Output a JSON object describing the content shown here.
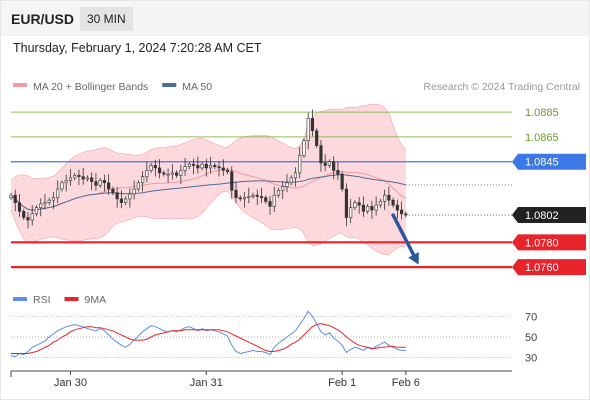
{
  "header": {
    "symbol": "EUR/USD",
    "timeframe": "30 MIN"
  },
  "datetime": "Thursday, February 1, 2024 7:20:28 AM CET",
  "colors": {
    "bollinger_fill": "#fdd8dc",
    "bollinger_line": "#f6a4ab",
    "ma20": "#f19aa3",
    "ma50": "#4a6c9b",
    "resistance": "#8fbf5a",
    "pivot": "#3c78e6",
    "support": "#e8232a",
    "current_bg": "#222222",
    "arrow": "#2b579a",
    "rsi": "#5b8ee6",
    "rsi_ma": "#e8232a"
  },
  "chart_data": [
    {
      "type": "candlestick",
      "legend": [
        {
          "name": "MA 20 + Bollinger Bands",
          "color": "#f19aa3"
        },
        {
          "name": "MA 50",
          "color": "#4a6c9b"
        }
      ],
      "attribution": "Research © 2024 Trading Central",
      "ylim": [
        1.0748,
        1.0898
      ],
      "x_range": [
        0,
        118
      ],
      "x_ticks": [
        {
          "x": 14,
          "label": "Jan 30"
        },
        {
          "x": 46,
          "label": "Jan 31"
        },
        {
          "x": 78,
          "label": "Feb 1"
        },
        {
          "x": 93,
          "label": "Feb 6"
        }
      ],
      "levels": [
        {
          "value": 1.0885,
          "label": "1.0885",
          "kind": "resistance"
        },
        {
          "value": 1.0865,
          "label": "1.0865",
          "kind": "resistance"
        },
        {
          "value": 1.0845,
          "label": "1.0845",
          "kind": "pivot"
        },
        {
          "value": 1.078,
          "label": "1.0780",
          "kind": "support"
        },
        {
          "value": 1.076,
          "label": "1.0760",
          "kind": "support"
        }
      ],
      "current_price": {
        "value": 1.0802,
        "label": "1.0802"
      },
      "forecast_arrow": {
        "from": [
          90,
          1.0802
        ],
        "to": [
          96,
          1.0762
        ]
      },
      "close": [
        1.0818,
        1.0812,
        1.0805,
        1.08,
        1.0798,
        1.0803,
        1.0808,
        1.0811,
        1.0812,
        1.0814,
        1.0816,
        1.0823,
        1.0828,
        1.083,
        1.0832,
        1.0834,
        1.0833,
        1.0831,
        1.0832,
        1.0829,
        1.0826,
        1.083,
        1.0828,
        1.0823,
        1.082,
        1.0815,
        1.0812,
        1.0815,
        1.0819,
        1.0823,
        1.0828,
        1.0833,
        1.0838,
        1.0842,
        1.084,
        1.0836,
        1.0835,
        1.0835,
        1.0836,
        1.0834,
        1.0838,
        1.0841,
        1.0843,
        1.0842,
        1.084,
        1.0843,
        1.084,
        1.0842,
        1.0841,
        1.084,
        1.0838,
        1.0837,
        1.0822,
        1.0816,
        1.0815,
        1.0816,
        1.0817,
        1.0818,
        1.0817,
        1.0816,
        1.0813,
        1.0809,
        1.0818,
        1.0822,
        1.0825,
        1.0828,
        1.0832,
        1.0836,
        1.085,
        1.0862,
        1.088,
        1.087,
        1.0858,
        1.0844,
        1.0842,
        1.0845,
        1.0838,
        1.0835,
        1.0823,
        1.08,
        1.0808,
        1.0812,
        1.081,
        1.0805,
        1.0809,
        1.0806,
        1.081,
        1.0813,
        1.0818,
        1.0814,
        1.081,
        1.0806,
        1.0803,
        1.0802
      ]
    },
    {
      "type": "line",
      "legend": [
        {
          "name": "RSI",
          "color": "#5b8ee6"
        },
        {
          "name": "9MA",
          "color": "#e8232a"
        }
      ],
      "ylim": [
        20,
        80
      ],
      "y_ticks": [
        {
          "value": 70,
          "label": "70"
        },
        {
          "value": 50,
          "label": "50"
        },
        {
          "value": 30,
          "label": "30"
        }
      ],
      "rsi": [
        32,
        31,
        34,
        33,
        36,
        40,
        42,
        44,
        46,
        50,
        53,
        56,
        58,
        60,
        61,
        62,
        61,
        60,
        58,
        57,
        56,
        58,
        56,
        52,
        48,
        45,
        42,
        40,
        43,
        47,
        51,
        55,
        58,
        61,
        60,
        58,
        56,
        55,
        56,
        55,
        57,
        59,
        60,
        58,
        56,
        58,
        56,
        57,
        56,
        55,
        53,
        51,
        42,
        36,
        34,
        35,
        36,
        37,
        36,
        36,
        35,
        33,
        40,
        44,
        47,
        50,
        53,
        56,
        62,
        68,
        75,
        70,
        63,
        55,
        52,
        54,
        49,
        46,
        42,
        35,
        38,
        40,
        39,
        37,
        40,
        38,
        41,
        43,
        45,
        42,
        40,
        38,
        37,
        37
      ],
      "rsi_ma": [
        34,
        34,
        34,
        34,
        34,
        35,
        36,
        38,
        40,
        42,
        45,
        47,
        50,
        52,
        55,
        57,
        58,
        59,
        60,
        60,
        59,
        59,
        58,
        57,
        56,
        54,
        52,
        50,
        48,
        47,
        47,
        47,
        48,
        50,
        52,
        53,
        54,
        55,
        56,
        56,
        56,
        57,
        57,
        57,
        57,
        57,
        57,
        57,
        57,
        57,
        56,
        55,
        53,
        51,
        49,
        47,
        45,
        43,
        41,
        39,
        37,
        36,
        36,
        37,
        38,
        40,
        43,
        45,
        48,
        52,
        56,
        60,
        62,
        63,
        62,
        61,
        59,
        57,
        54,
        50,
        47,
        44,
        42,
        41,
        40,
        39,
        39,
        40,
        40,
        41,
        41,
        40,
        40,
        40
      ]
    }
  ]
}
